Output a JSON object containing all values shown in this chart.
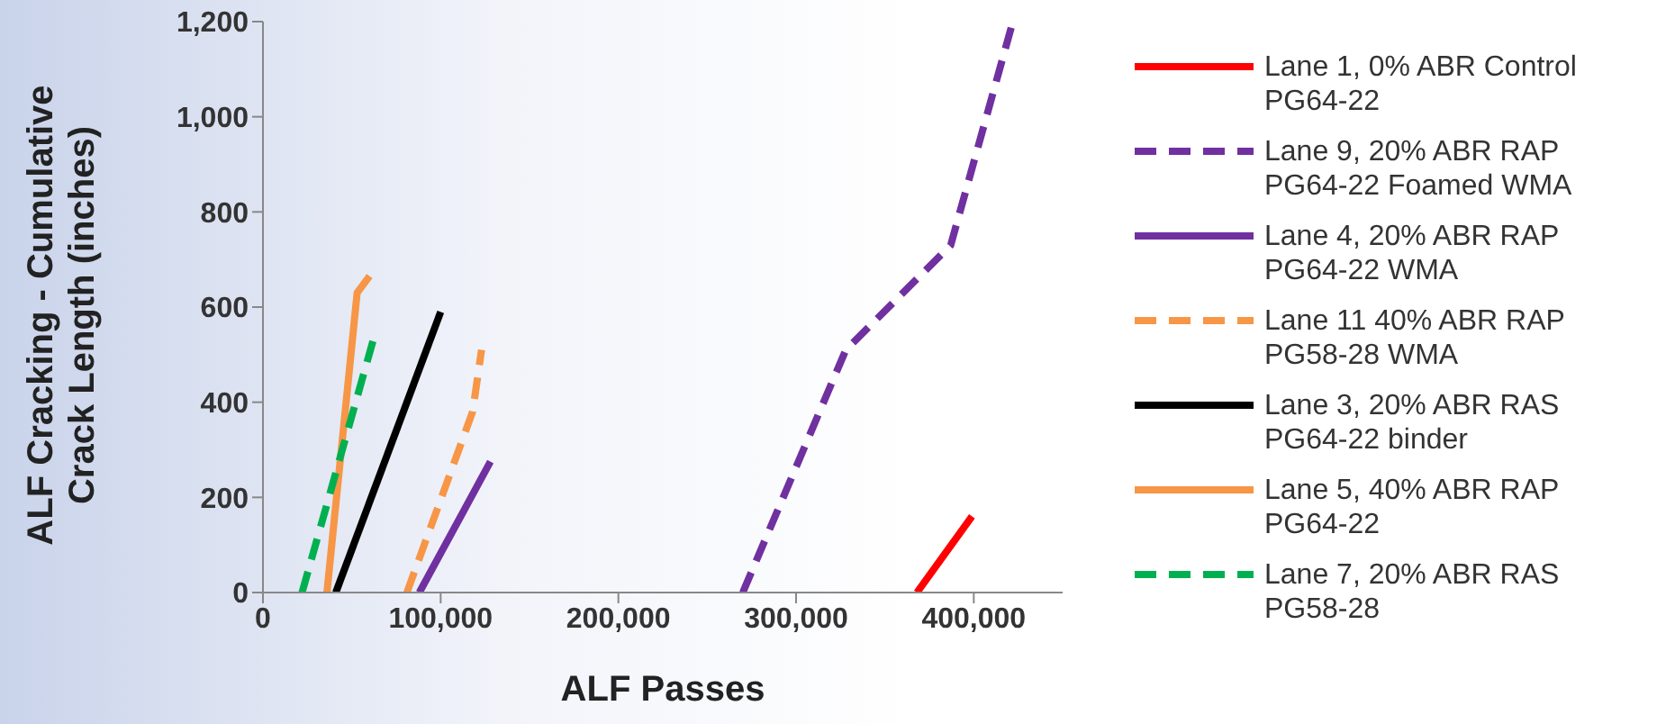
{
  "chart_data": {
    "type": "line",
    "xlabel": "ALF Passes",
    "ylabel": "ALF Cracking - Cumulative Crack Length (inches)",
    "xlim": [
      0,
      450000
    ],
    "xticks": [
      {
        "value": 0,
        "label": "0"
      },
      {
        "value": 100000,
        "label": "100,000"
      },
      {
        "value": 200000,
        "label": "200,000"
      },
      {
        "value": 300000,
        "label": "300,000"
      },
      {
        "value": 400000,
        "label": "400,000"
      }
    ],
    "ylim": [
      0,
      1200
    ],
    "yticks": [
      {
        "value": 0,
        "label": "0"
      },
      {
        "value": 200,
        "label": "200"
      },
      {
        "value": 400,
        "label": "400"
      },
      {
        "value": 600,
        "label": "600"
      },
      {
        "value": 800,
        "label": "800"
      },
      {
        "value": 1000,
        "label": "1,000"
      },
      {
        "value": 1200,
        "label": "1,200"
      }
    ],
    "grid": false,
    "legend": "right",
    "marker": "none",
    "series": [
      {
        "name": "Lane 1, 0% ABR Control PG64-22",
        "color": "#ff0000",
        "line_style": "solid",
        "x": [
          368000,
          399000
        ],
        "values": [
          0,
          160
        ]
      },
      {
        "name": "Lane 9, 20% ABR RAP PG64-22 Foamed WMA",
        "color": "#7030a0",
        "line_style": "dashed",
        "x": [
          270000,
          328000,
          387000,
          422000
        ],
        "values": [
          0,
          510,
          730,
          1200
        ]
      },
      {
        "name": "Lane 4, 20% ABR RAP PG64-22 WMA",
        "color": "#7030a0",
        "line_style": "solid",
        "x": [
          88000,
          128000
        ],
        "values": [
          0,
          275
        ]
      },
      {
        "name": "Lane 11 40% ABR RAP PG58-28 WMA",
        "color": "#f79646",
        "line_style": "dashed",
        "x": [
          81000,
          118000,
          123000
        ],
        "values": [
          0,
          380,
          510
        ]
      },
      {
        "name": "Lane 3, 20% ABR RAS PG64-22 binder",
        "color": "#000000",
        "line_style": "solid",
        "x": [
          41000,
          100000
        ],
        "values": [
          0,
          590
        ]
      },
      {
        "name": "Lane 5, 40% ABR RAP PG64-22",
        "color": "#f79646",
        "line_style": "solid",
        "x": [
          36000,
          53000,
          60000
        ],
        "values": [
          0,
          630,
          665
        ]
      },
      {
        "name": "Lane 7, 20% ABR RAS PG58-28",
        "color": "#00b050",
        "line_style": "dashed",
        "x": [
          22000,
          62000
        ],
        "values": [
          0,
          530
        ]
      }
    ]
  }
}
